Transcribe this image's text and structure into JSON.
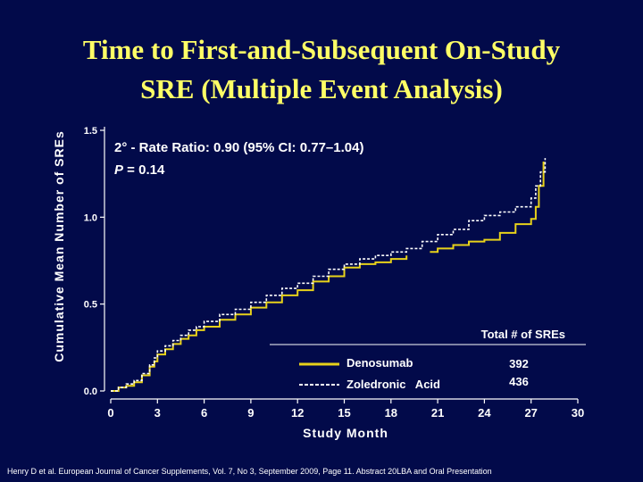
{
  "slide": {
    "title_line1": "Time to First-and-Subsequent On-Study",
    "title_line2": "SRE (Multiple Event Analysis)",
    "citation": "Henry D et al. European Journal of Cancer Supplements, Vol. 7, No 3, September 2009, Page 11. Abstract 20LBA and Oral Presentation"
  },
  "colors": {
    "background": "#020a4a",
    "title": "#ffff66",
    "denosumab": "#e8d21a",
    "zoledronic_acid": "#ffffff",
    "text": "#ffffff"
  },
  "chart_data": {
    "type": "line",
    "xlabel": "Study Month",
    "ylabel": "Cumulative Mean Number of SREs",
    "xlim": [
      0,
      30
    ],
    "ylim": [
      0,
      1.5
    ],
    "x_ticks": [
      0,
      3,
      6,
      9,
      12,
      15,
      18,
      21,
      24,
      27,
      30
    ],
    "y_ticks": [
      0.0,
      0.5,
      1.0,
      1.5
    ],
    "y_tick_labels": [
      "0.0",
      "0.5",
      "1.0",
      "1.5"
    ],
    "annotation_line1": "2° - Rate Ratio: 0.90 (95% CI: 0.77–1.04)",
    "annotation_line2_p": "P",
    "annotation_line2_rest": " = 0.14",
    "legend": {
      "header": "Total # of SREs",
      "placement": "bottom-right",
      "entries": [
        {
          "label": "Denosumab",
          "value": "392",
          "style": "solid"
        },
        {
          "label": "Zoledronic   Acid",
          "value": "436",
          "style": "dashed"
        }
      ]
    },
    "series": [
      {
        "name": "Denosumab",
        "style": "solid",
        "x": [
          0,
          0.5,
          1,
          1.5,
          2,
          2.5,
          2.8,
          3,
          3.5,
          4,
          4.5,
          5,
          5.5,
          6,
          7,
          8,
          9,
          10,
          11,
          12,
          13,
          14,
          15,
          16,
          17,
          18,
          19
        ],
        "y": [
          0.0,
          0.02,
          0.03,
          0.05,
          0.09,
          0.14,
          0.17,
          0.21,
          0.24,
          0.27,
          0.3,
          0.32,
          0.35,
          0.37,
          0.41,
          0.44,
          0.48,
          0.51,
          0.55,
          0.58,
          0.63,
          0.66,
          0.71,
          0.73,
          0.74,
          0.76,
          0.78
        ]
      },
      {
        "name": "Denosumab (late)",
        "style": "solid",
        "x": [
          20.5,
          21,
          22,
          23,
          24,
          25,
          26,
          27,
          27.3,
          27.5,
          27.8
        ],
        "y": [
          0.8,
          0.82,
          0.84,
          0.86,
          0.87,
          0.91,
          0.96,
          0.99,
          1.06,
          1.18,
          1.32
        ]
      },
      {
        "name": "Zoledronic Acid",
        "style": "dashed",
        "x": [
          0,
          0.5,
          1,
          1.5,
          2,
          2.5,
          2.8,
          3,
          3.5,
          4,
          4.5,
          5,
          5.5,
          6,
          7,
          8,
          9,
          10,
          11,
          12,
          13,
          14,
          15,
          16,
          17,
          18,
          19,
          20,
          21,
          22,
          23,
          24,
          25,
          26,
          27,
          27.3,
          27.6,
          27.9
        ],
        "y": [
          0.0,
          0.02,
          0.04,
          0.06,
          0.1,
          0.15,
          0.19,
          0.23,
          0.26,
          0.29,
          0.32,
          0.35,
          0.37,
          0.4,
          0.44,
          0.47,
          0.51,
          0.55,
          0.59,
          0.62,
          0.66,
          0.7,
          0.73,
          0.76,
          0.78,
          0.8,
          0.82,
          0.86,
          0.9,
          0.93,
          0.98,
          1.01,
          1.03,
          1.06,
          1.11,
          1.18,
          1.26,
          1.34
        ]
      }
    ]
  }
}
